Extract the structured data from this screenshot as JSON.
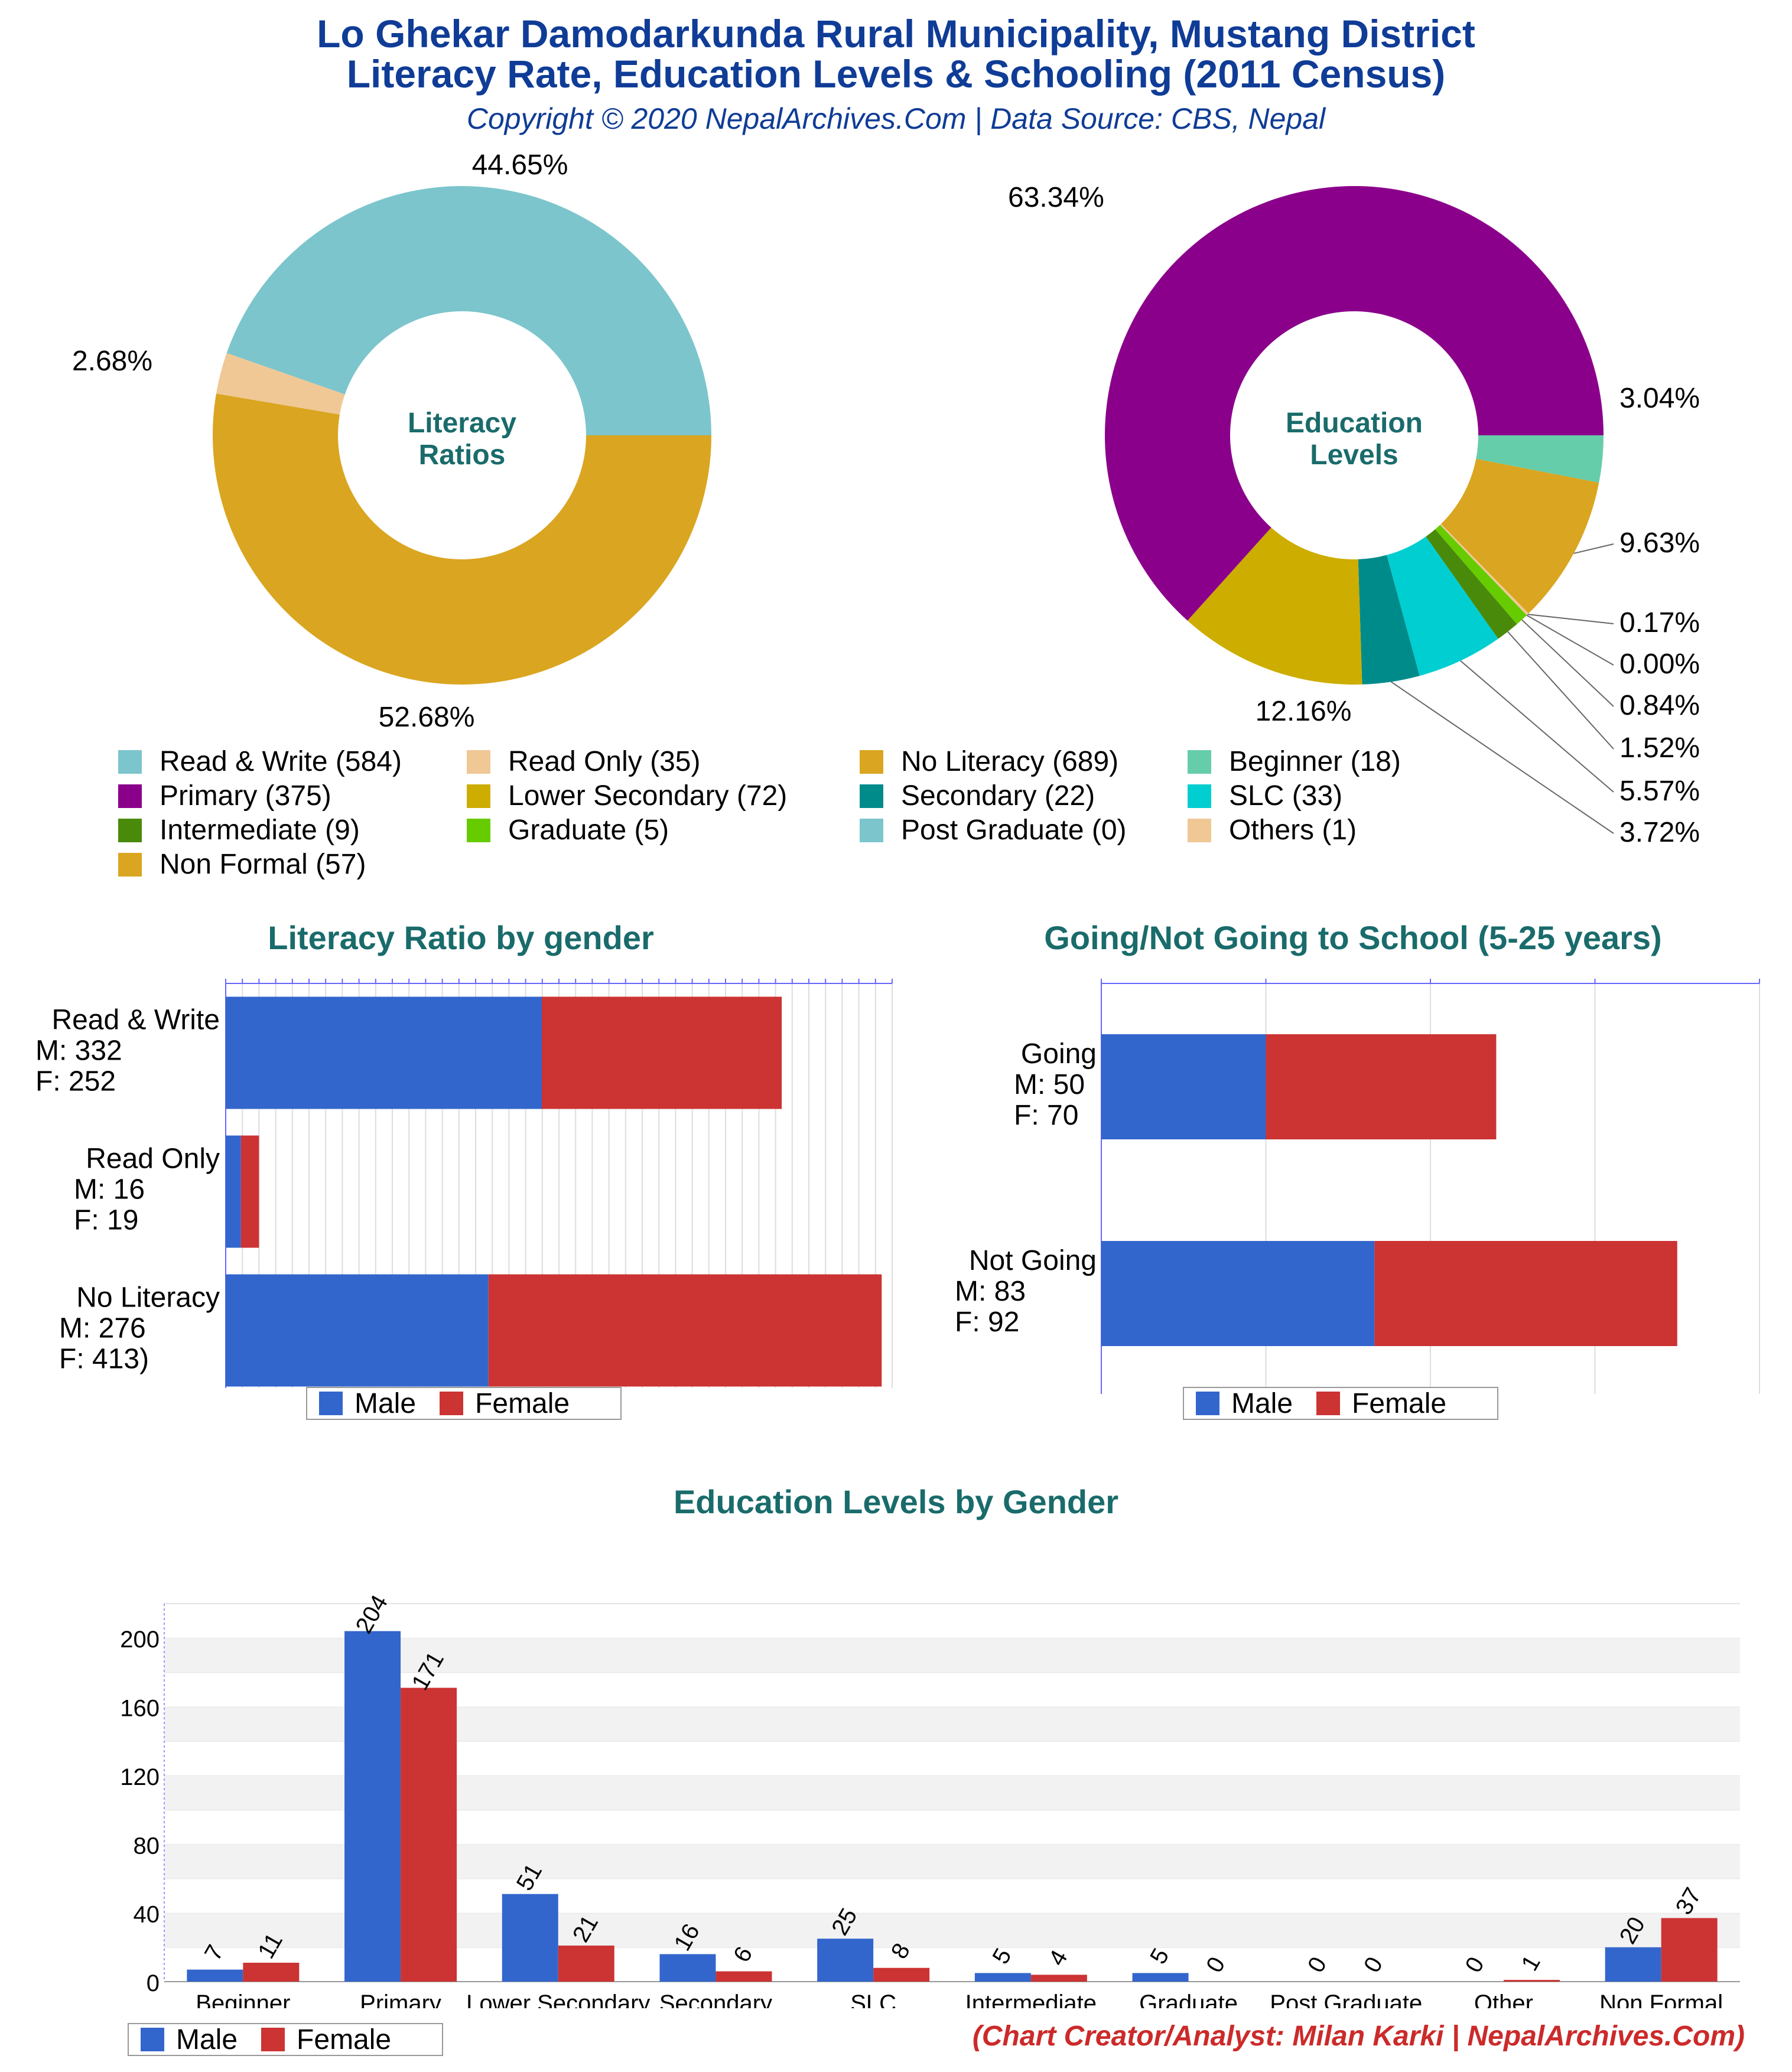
{
  "header": {
    "title_line1": "Lo Ghekar Damodarkunda Rural Municipality, Mustang District",
    "title_line2": "Literacy Rate, Education Levels & Schooling (2011 Census)",
    "copyright": "Copyright © 2020 NepalArchives.Com | Data Source: CBS, Nepal"
  },
  "colors": {
    "male": "#3366cc",
    "female": "#cc3333",
    "title_blue": "#0f3c96",
    "teal": "#1a6b6b",
    "footer_red": "#cc2a2a"
  },
  "legend": {
    "items": [
      {
        "label": "Read & Write (584)",
        "color": "#7cc5cc"
      },
      {
        "label": "Read Only (35)",
        "color": "#f0c896"
      },
      {
        "label": "No Literacy (689)",
        "color": "#daa520"
      },
      {
        "label": "Beginner (18)",
        "color": "#66cdaa"
      },
      {
        "label": "Primary (375)",
        "color": "#8b008b"
      },
      {
        "label": "Lower Secondary (72)",
        "color": "#ccad00"
      },
      {
        "label": "Secondary (22)",
        "color": "#008b8b"
      },
      {
        "label": "SLC (33)",
        "color": "#00ced1"
      },
      {
        "label": "Intermediate (9)",
        "color": "#4a8a0a"
      },
      {
        "label": "Graduate (5)",
        "color": "#66cc00"
      },
      {
        "label": "Post Graduate (0)",
        "color": "#7cc5cc"
      },
      {
        "label": "Others (1)",
        "color": "#f0c896"
      },
      {
        "label": "Non Formal (57)",
        "color": "#daa520"
      }
    ]
  },
  "footer": "(Chart Creator/Analyst: Milan Karki | NepalArchives.Com)",
  "bar_legend": {
    "male": "Male",
    "female": "Female"
  },
  "chart_data": [
    {
      "type": "pie",
      "title": "Literacy Ratios",
      "donut": true,
      "slices": [
        {
          "label": "Read & Write",
          "value": 584,
          "pct_label": "44.65%",
          "color": "#7cc5cc"
        },
        {
          "label": "Read Only",
          "value": 35,
          "pct_label": "2.68%",
          "color": "#f0c896"
        },
        {
          "label": "No Literacy",
          "value": 689,
          "pct_label": "52.68%",
          "color": "#daa520"
        }
      ]
    },
    {
      "type": "pie",
      "title": "Education Levels",
      "donut": true,
      "slices": [
        {
          "label": "Beginner",
          "value": 18,
          "pct_label": "3.04%",
          "color": "#66cdaa"
        },
        {
          "label": "Non Formal",
          "value": 57,
          "pct_label": "9.63%",
          "color": "#daa520"
        },
        {
          "label": "Others",
          "value": 1,
          "pct_label": "0.17%",
          "color": "#f0c896"
        },
        {
          "label": "Post Graduate",
          "value": 0,
          "pct_label": "0.00%",
          "color": "#7cc5cc"
        },
        {
          "label": "Graduate",
          "value": 5,
          "pct_label": "0.84%",
          "color": "#66cc00"
        },
        {
          "label": "Intermediate",
          "value": 9,
          "pct_label": "1.52%",
          "color": "#4a8a0a"
        },
        {
          "label": "SLC",
          "value": 33,
          "pct_label": "5.57%",
          "color": "#00ced1"
        },
        {
          "label": "Secondary",
          "value": 22,
          "pct_label": "3.72%",
          "color": "#008b8b"
        },
        {
          "label": "Lower Secondary",
          "value": 72,
          "pct_label": "12.16%",
          "color": "#ccad00"
        },
        {
          "label": "Primary",
          "value": 375,
          "pct_label": "63.34%",
          "color": "#8b008b"
        }
      ]
    },
    {
      "type": "bar",
      "orientation": "horizontal",
      "stacked": true,
      "title": "Literacy Ratio by gender",
      "categories": [
        {
          "line1": "Read & Write",
          "line2": "M: 332",
          "line3": "F: 252"
        },
        {
          "line1": "Read Only",
          "line2": "M: 16",
          "line3": "F: 19"
        },
        {
          "line1": "No Literacy",
          "line2": "M: 276",
          "line3": "F: 413)"
        }
      ],
      "series": [
        {
          "name": "Male",
          "values": [
            332,
            16,
            276
          ]
        },
        {
          "name": "Female",
          "values": [
            252,
            19,
            413
          ]
        }
      ],
      "xlim": [
        0,
        700
      ]
    },
    {
      "type": "bar",
      "orientation": "horizontal",
      "stacked": true,
      "title": "Going/Not Going to School (5-25 years)",
      "categories": [
        {
          "line1": "Going",
          "line2": "M: 50",
          "line3": "F: 70"
        },
        {
          "line1": "Not Going",
          "line2": "M: 83",
          "line3": "F: 92"
        }
      ],
      "series": [
        {
          "name": "Male",
          "values": [
            50,
            83
          ]
        },
        {
          "name": "Female",
          "values": [
            70,
            92
          ]
        }
      ],
      "xlim": [
        0,
        200
      ]
    },
    {
      "type": "bar",
      "title": "Education Levels by Gender",
      "categories": [
        "Beginner",
        "Primary",
        "Lower Secondary",
        "Secondary",
        "SLC",
        "Intermediate",
        "Graduate",
        "Post Graduate",
        "Other",
        "Non Formal"
      ],
      "series": [
        {
          "name": "Male",
          "values": [
            7,
            204,
            51,
            16,
            25,
            5,
            5,
            0,
            0,
            20
          ]
        },
        {
          "name": "Female",
          "values": [
            11,
            171,
            21,
            6,
            8,
            4,
            0,
            0,
            1,
            37
          ]
        }
      ],
      "yticks": [
        "0",
        "40",
        "80",
        "120",
        "160",
        "200"
      ],
      "ylim": [
        0,
        220
      ]
    }
  ]
}
